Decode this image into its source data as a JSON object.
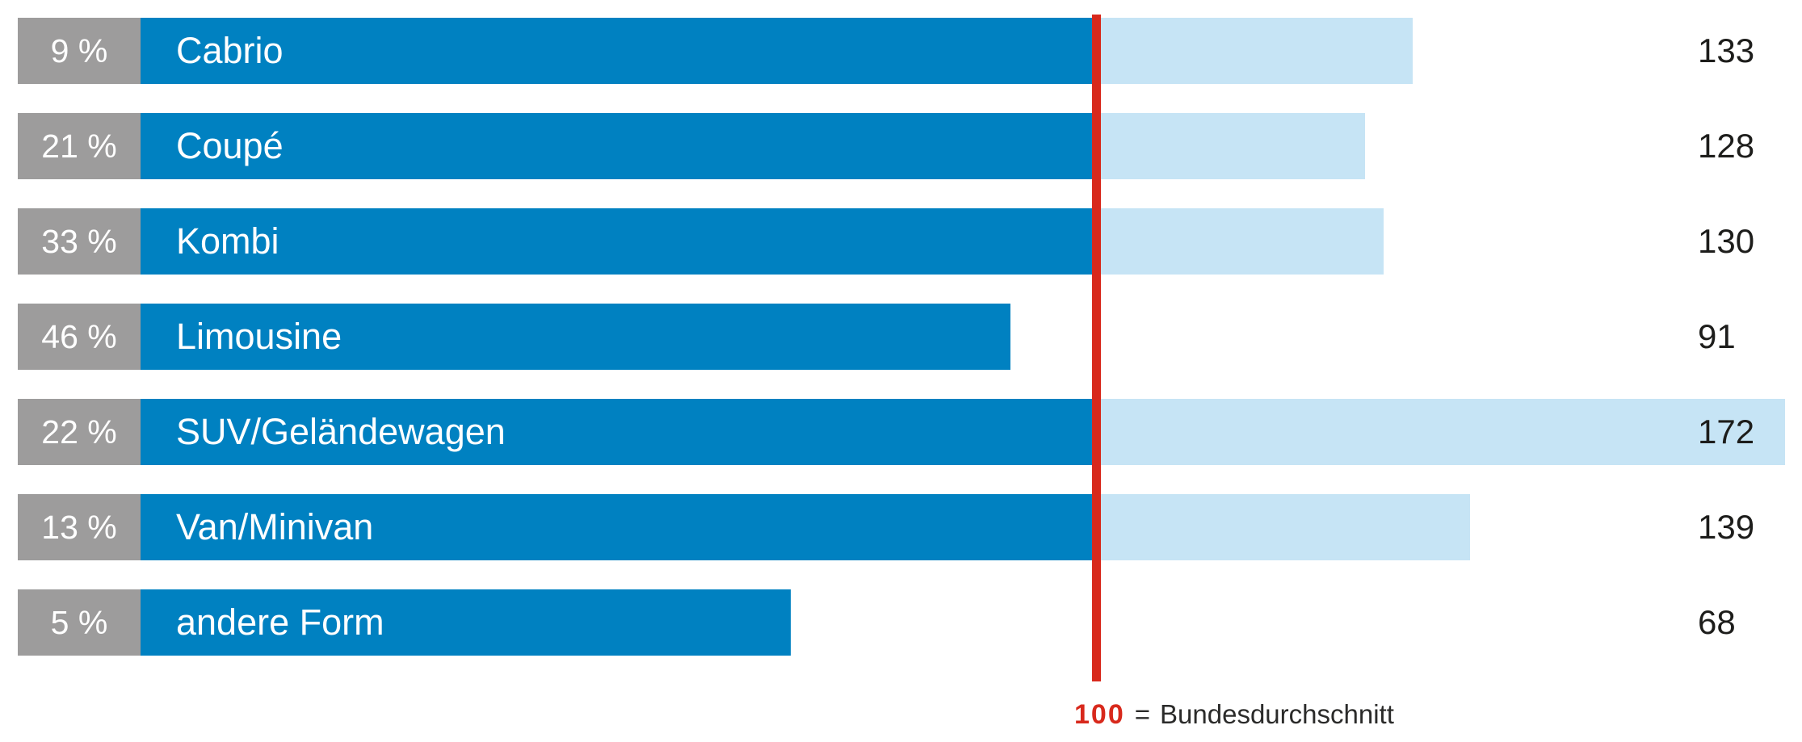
{
  "chart": {
    "rows": [
      {
        "percent": "9 %",
        "label": "Cabrio",
        "index": "133"
      },
      {
        "percent": "21 %",
        "label": "Coupé",
        "index": "128"
      },
      {
        "percent": "33 %",
        "label": "Kombi",
        "index": "130"
      },
      {
        "percent": "46 %",
        "label": "Limousine",
        "index": "91"
      },
      {
        "percent": "22 %",
        "label": "SUV/Geländewagen",
        "index": "172"
      },
      {
        "percent": "13 %",
        "label": "Van/Minivan",
        "index": "139"
      },
      {
        "percent": "5 %",
        "label": "andere Form",
        "index": "68"
      }
    ],
    "reference": {
      "value": "100",
      "equals": "=",
      "text": "Bundesdurchschnitt"
    }
  },
  "chart_data": {
    "type": "bar",
    "orientation": "horizontal",
    "categories": [
      "Cabrio",
      "Coupé",
      "Kombi",
      "Limousine",
      "SUV/Geländewagen",
      "Van/Minivan",
      "andere Form"
    ],
    "series": [
      {
        "name": "Anteil (%)",
        "values": [
          9,
          21,
          33,
          46,
          22,
          13,
          5
        ]
      },
      {
        "name": "Index (100 = Bundesdurchschnitt)",
        "values": [
          133,
          128,
          130,
          91,
          172,
          139,
          68
        ]
      }
    ],
    "reference_line": {
      "value": 100,
      "label": "100 = Bundesdurchschnitt"
    },
    "xlim": [
      0,
      174
    ],
    "grid": false,
    "legend": false,
    "colors": {
      "bar_below_reference": "#0081c1",
      "bar_above_reference": "#c6e4f5",
      "percent_box": "#9d9c9c",
      "reference_line": "#d8291c",
      "index_text": "#1d1d1b",
      "bar_text": "#ffffff"
    }
  }
}
